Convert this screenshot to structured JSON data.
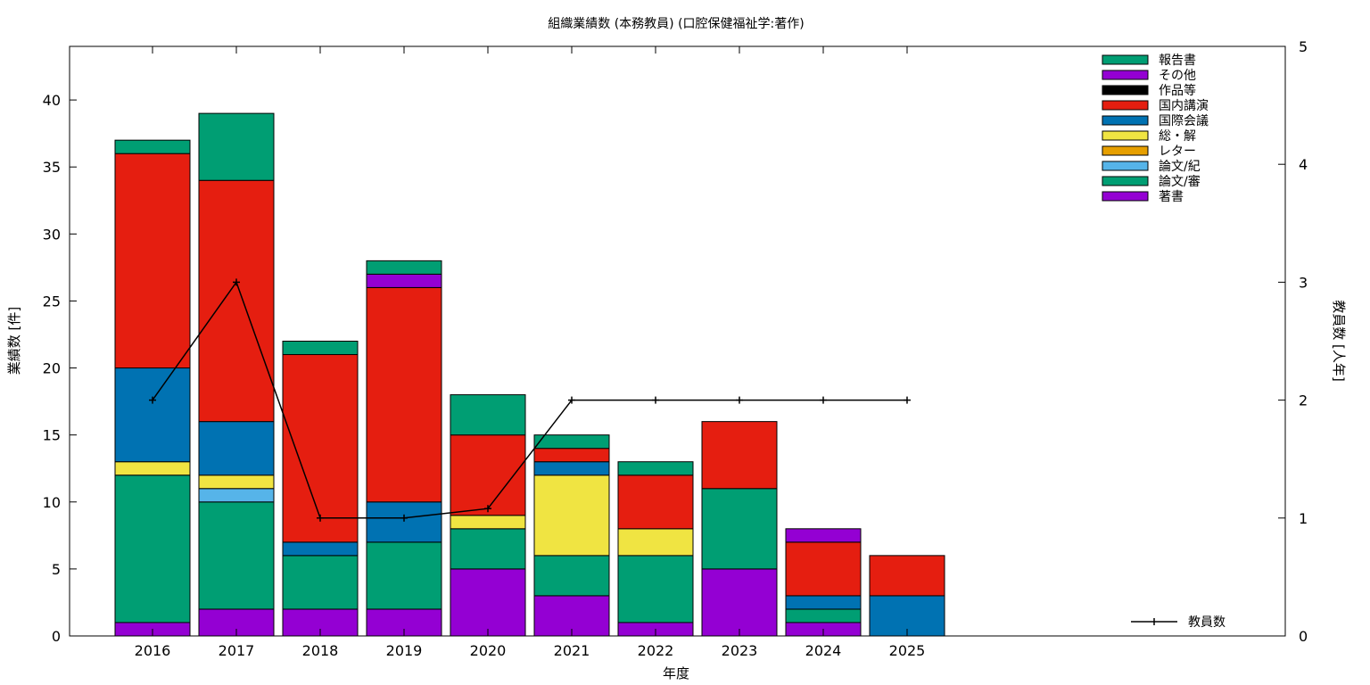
{
  "chart_data": {
    "type": "bar",
    "stacked": true,
    "title": "組織業績数 (本務教員) (口腔保健福祉学:著作)",
    "xlabel": "年度",
    "ylabel": "業績数 [件]",
    "y2label": "教員数 [人年]",
    "ylim": [
      0,
      44
    ],
    "y2lim": [
      0,
      5
    ],
    "yticks": [
      0,
      5,
      10,
      15,
      20,
      25,
      30,
      35,
      40
    ],
    "y2ticks": [
      0,
      1,
      2,
      3,
      4,
      5
    ],
    "grid": false,
    "legend_position": "top-right",
    "categories": [
      "2016",
      "2017",
      "2018",
      "2019",
      "2020",
      "2021",
      "2022",
      "2023",
      "2024",
      "2025"
    ],
    "series": [
      {
        "name": "著書",
        "color": "#9400d3",
        "values": [
          1,
          2,
          2,
          2,
          5,
          3,
          1,
          5,
          1,
          0
        ]
      },
      {
        "name": "論文/審",
        "color": "#009e73",
        "values": [
          11,
          8,
          4,
          5,
          3,
          3,
          5,
          6,
          1,
          0
        ]
      },
      {
        "name": "論文/紀",
        "color": "#56b4e9",
        "values": [
          0,
          1,
          0,
          0,
          0,
          0,
          0,
          0,
          0,
          0
        ]
      },
      {
        "name": "レター",
        "color": "#e69f00",
        "values": [
          0,
          0,
          0,
          0,
          0,
          0,
          0,
          0,
          0,
          0
        ]
      },
      {
        "name": "総・解",
        "color": "#f0e442",
        "values": [
          1,
          1,
          0,
          0,
          1,
          6,
          2,
          0,
          0,
          0
        ]
      },
      {
        "name": "国際会議",
        "color": "#0072b2",
        "values": [
          7,
          4,
          1,
          3,
          0,
          1,
          0,
          0,
          1,
          3
        ]
      },
      {
        "name": "国内講演",
        "color": "#e51e10",
        "values": [
          16,
          18,
          14,
          16,
          6,
          1,
          4,
          5,
          4,
          3
        ]
      },
      {
        "name": "作品等",
        "color": "#000000",
        "values": [
          0,
          0,
          0,
          0,
          0,
          0,
          0,
          0,
          0,
          0
        ]
      },
      {
        "name": "その他",
        "color": "#9400d3",
        "values": [
          0,
          0,
          0,
          1,
          0,
          0,
          0,
          0,
          1,
          0
        ]
      },
      {
        "name": "報告書",
        "color": "#009e73",
        "values": [
          1,
          5,
          1,
          1,
          3,
          1,
          1,
          0,
          0,
          0
        ]
      }
    ],
    "line": {
      "name": "教員数",
      "color": "#000000",
      "values": [
        2,
        3,
        1,
        1,
        1.08,
        2,
        2,
        2,
        2,
        2
      ]
    }
  }
}
